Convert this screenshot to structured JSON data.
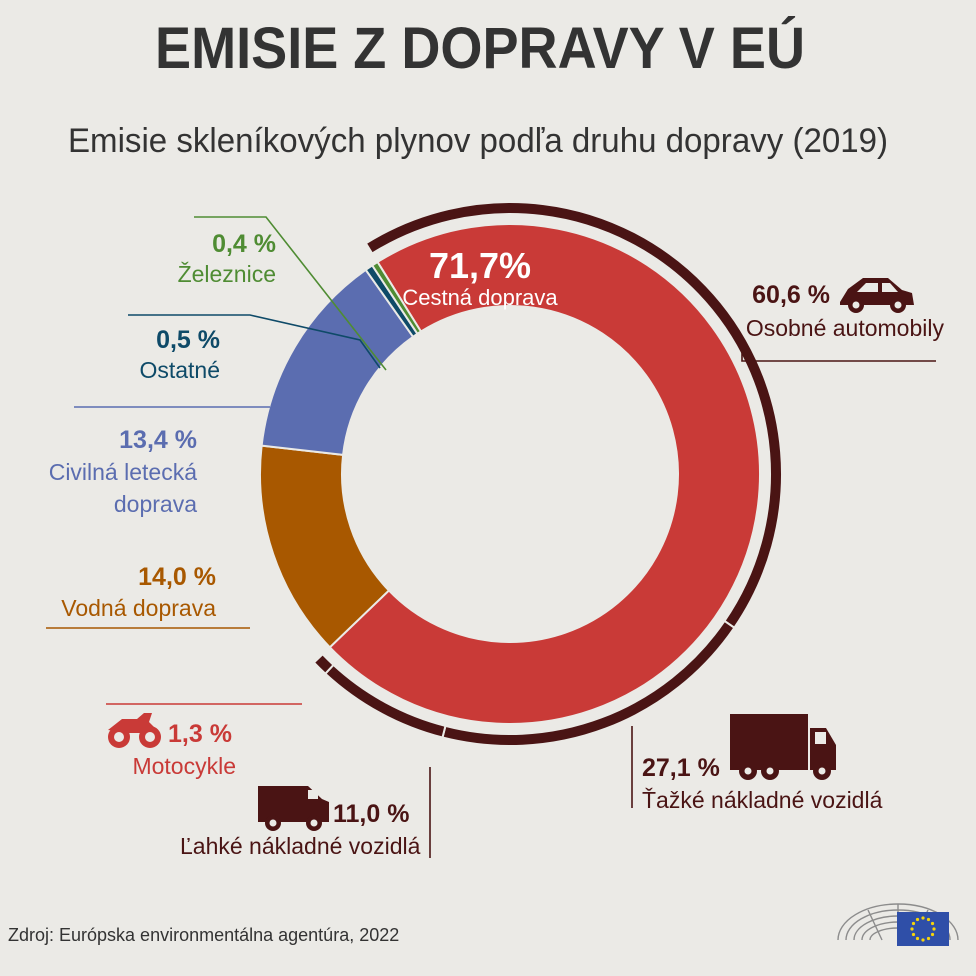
{
  "chart_data": {
    "type": "pie",
    "title": "EMISIE Z DOPRAVY V EÚ",
    "subtitle": "Emisie skleníkových plynov podľa druhu dopravy (2019)",
    "slices": [
      {
        "key": "road",
        "label": "Cestná doprava",
        "value": 71.7,
        "value_label": "71,7%",
        "color": "#c93a37"
      },
      {
        "key": "water",
        "label": "Vodná doprava",
        "value": 14.0,
        "value_label": "14,0 %",
        "color": "#a85800"
      },
      {
        "key": "aviation",
        "label": "Civilná letecká doprava",
        "value": 13.4,
        "value_label": "13,4 %",
        "color": "#5b6db0"
      },
      {
        "key": "other",
        "label": "Ostatné",
        "value": 0.5,
        "value_label": "0,5 %",
        "color": "#0e4a68"
      },
      {
        "key": "rail",
        "label": "Železnice",
        "value": 0.4,
        "value_label": "0,4 %",
        "color": "#4f8c33"
      }
    ],
    "road_breakdown": [
      {
        "key": "cars",
        "label": "Osobné automobily",
        "value": 60.6,
        "value_label": "60,6 %",
        "icon": "car-icon"
      },
      {
        "key": "hdv",
        "label": "Ťažké nákladné vozidlá",
        "value": 27.1,
        "value_label": "27,1 %",
        "icon": "truck-icon"
      },
      {
        "key": "ldv",
        "label": "Ľahké nákladné vozidlá",
        "value": 11.0,
        "value_label": "11,0 %",
        "icon": "van-icon"
      },
      {
        "key": "moto",
        "label": "Motocykle",
        "value": 1.3,
        "value_label": "1,3 %",
        "icon": "motorcycle-icon"
      }
    ],
    "breakdown_color": "#4a1414",
    "divider_color": "#ebeae6"
  },
  "source": "Zdroj: Európska environmentálna agentúra, 2022",
  "logo": {
    "icon": "eu-parliament-logo",
    "flag": "eu-flag"
  }
}
